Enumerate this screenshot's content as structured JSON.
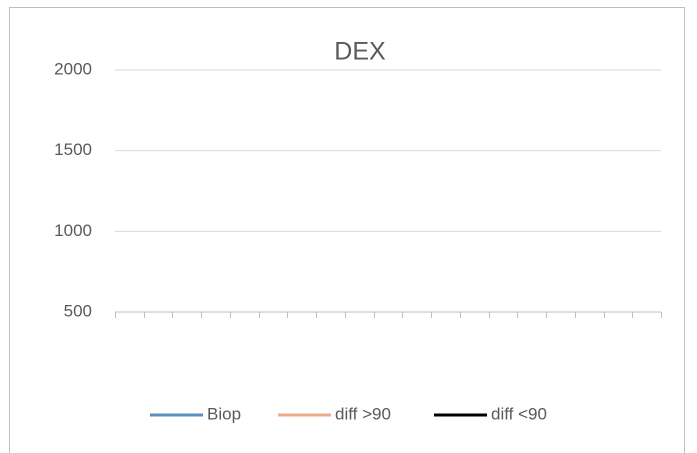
{
  "chart_data": {
    "type": "line",
    "title": "DEX",
    "categories": [
      null,
      null,
      null,
      null,
      null,
      null,
      null,
      null,
      null,
      null,
      null,
      null,
      null,
      null,
      null,
      null,
      null,
      null,
      null
    ],
    "series": [
      {
        "name": "Biop",
        "color": "#5b8fbe",
        "values": [
          null,
          null,
          null,
          null,
          null,
          null,
          null,
          null,
          null,
          null,
          null,
          null,
          null,
          null,
          null,
          null,
          null,
          null,
          null
        ]
      },
      {
        "name": "diff >90",
        "color": "#eeab8c",
        "values": [
          null,
          null,
          null,
          null,
          null,
          null,
          null,
          null,
          null,
          null,
          null,
          null,
          null,
          null,
          null,
          null,
          null,
          null,
          null
        ]
      },
      {
        "name": "diff <90",
        "color": "#000000",
        "values": [
          null,
          null,
          null,
          null,
          null,
          null,
          null,
          null,
          null,
          null,
          null,
          null,
          null,
          null,
          null,
          null,
          null,
          null,
          null
        ]
      }
    ],
    "ylim": [
      500,
      2000
    ],
    "yticks": [
      500,
      1000,
      1500,
      2000
    ],
    "grid": true,
    "legend": "bottom"
  }
}
